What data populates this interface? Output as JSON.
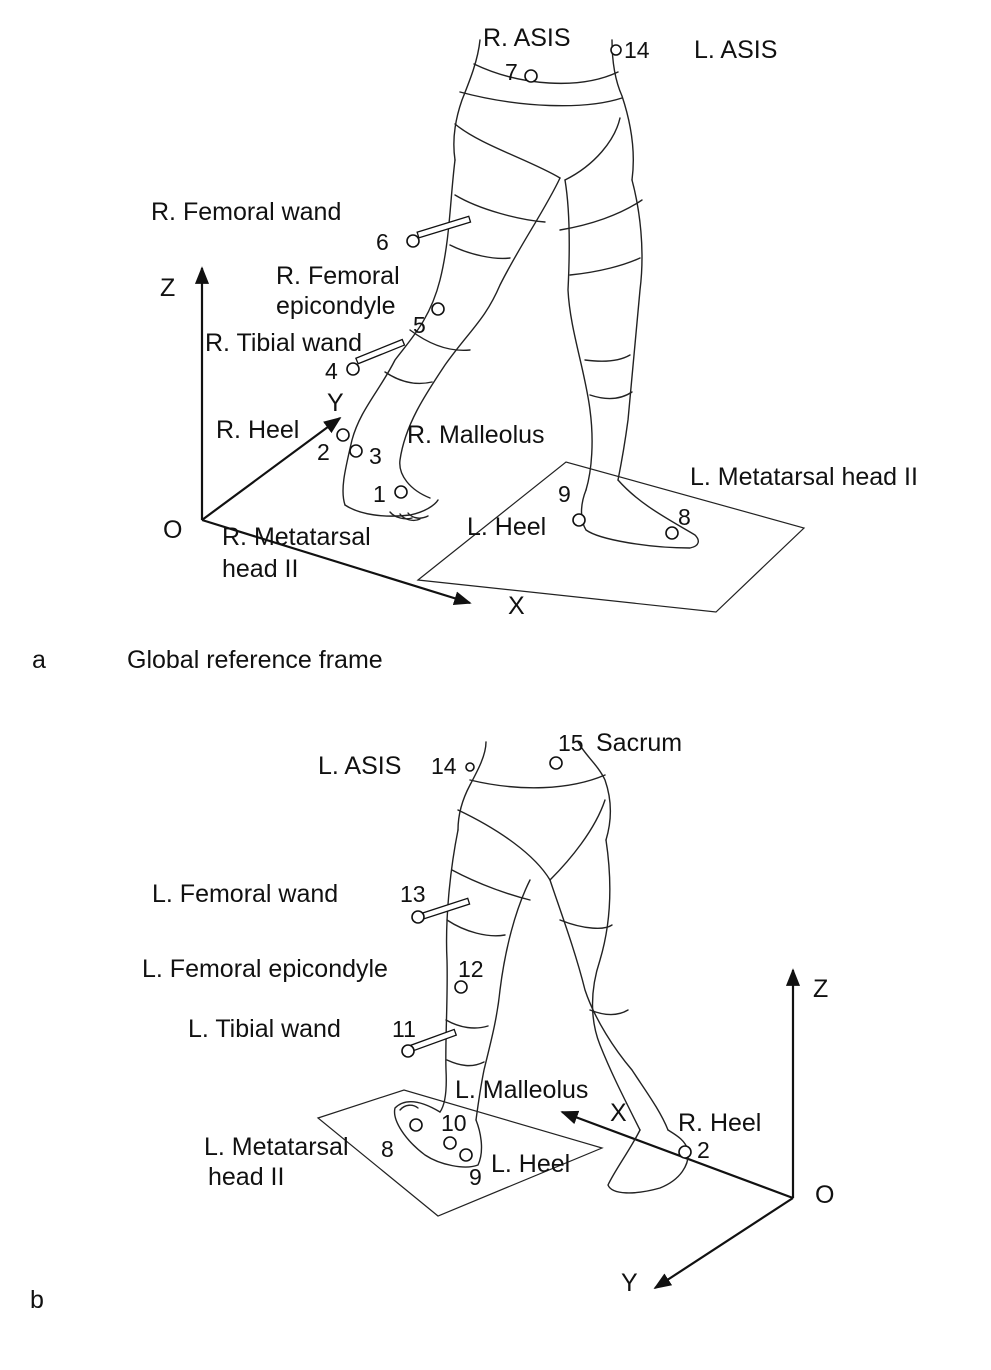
{
  "panel_a": {
    "letter": "a",
    "caption": "Global reference frame",
    "axes": {
      "z": "Z",
      "y": "Y",
      "x": "X",
      "origin": "O"
    },
    "labels": {
      "r_asis": "R. ASIS",
      "l_asis": "L. ASIS",
      "r_femoral_wand": "R. Femoral wand",
      "r_femoral_epicondyle_line1": "R. Femoral",
      "r_femoral_epicondyle_line2": "epicondyle",
      "r_tibial_wand": "R. Tibial wand",
      "r_heel": "R. Heel",
      "r_malleolus": "R. Malleolus",
      "l_metatarsal_head_ii": "L. Metatarsal head II",
      "r_metatarsal_line1": "R. Metatarsal",
      "r_metatarsal_line2": "head II",
      "l_heel": "L. Heel"
    },
    "markers": {
      "m1": "1",
      "m2": "2",
      "m3": "3",
      "m4": "4",
      "m5": "5",
      "m6": "6",
      "m7": "7",
      "m8": "8",
      "m9": "9",
      "m14": "14"
    }
  },
  "panel_b": {
    "letter": "b",
    "axes": {
      "z": "Z",
      "y": "Y",
      "x": "X",
      "origin": "O"
    },
    "labels": {
      "l_asis": "L. ASIS",
      "sacrum": "Sacrum",
      "l_femoral_wand": "L. Femoral wand",
      "l_femoral_epicondyle": "L. Femoral epicondyle",
      "l_tibial_wand": "L. Tibial wand",
      "l_malleolus": "L. Malleolus",
      "r_heel": "R. Heel",
      "l_metatarsal_line1": "L. Metatarsal",
      "l_metatarsal_line2": "head II",
      "l_heel": "L. Heel"
    },
    "markers": {
      "m2": "2",
      "m8": "8",
      "m9": "9",
      "m10": "10",
      "m11": "11",
      "m12": "12",
      "m13": "13",
      "m14": "14",
      "m15": "15"
    }
  }
}
